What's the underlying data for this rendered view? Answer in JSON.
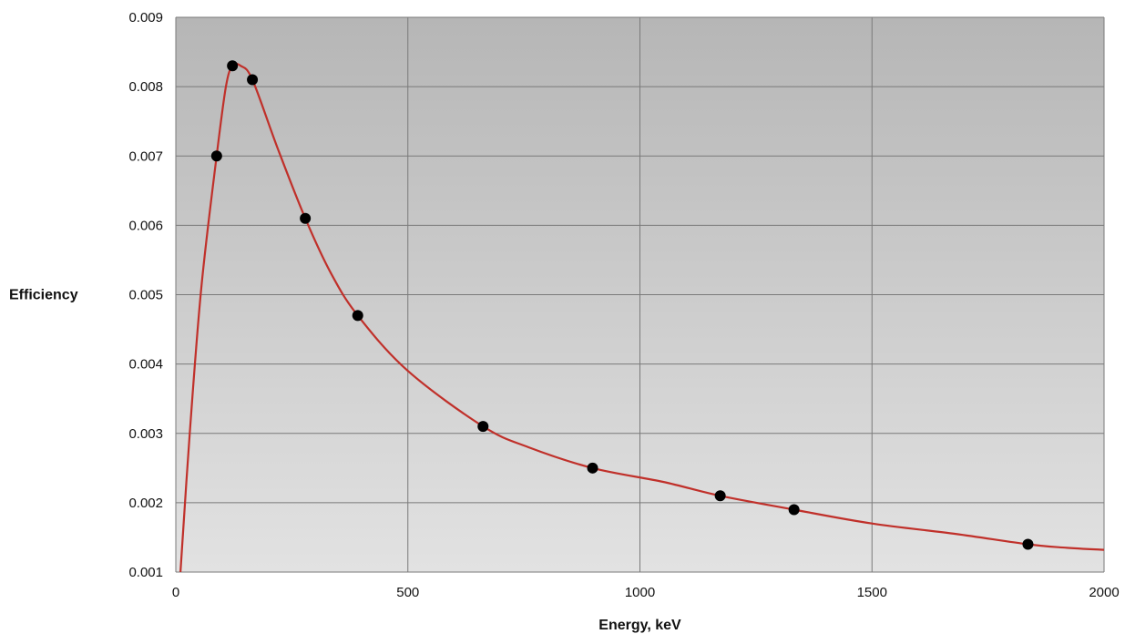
{
  "chart_data": {
    "type": "scatter",
    "title": "",
    "xlabel": "Energy, keV",
    "ylabel": "Efficiency",
    "xlim": [
      0,
      2000
    ],
    "ylim": [
      0.001,
      0.009
    ],
    "grid": true,
    "x_ticks": [
      0,
      500,
      1000,
      1500,
      2000
    ],
    "x_tick_labels": [
      "0",
      "500",
      "1000",
      "1500",
      "2000"
    ],
    "y_ticks": [
      0.001,
      0.002,
      0.003,
      0.004,
      0.005,
      0.006,
      0.007,
      0.008,
      0.009
    ],
    "y_tick_labels": [
      "0.001",
      "0.002",
      "0.003",
      "0.004",
      "0.005",
      "0.006",
      "0.007",
      "0.008",
      "0.009"
    ],
    "points": [
      {
        "x": 88,
        "y": 0.007
      },
      {
        "x": 122,
        "y": 0.0083
      },
      {
        "x": 165,
        "y": 0.0081
      },
      {
        "x": 279,
        "y": 0.0061
      },
      {
        "x": 392,
        "y": 0.0047
      },
      {
        "x": 662,
        "y": 0.0031
      },
      {
        "x": 898,
        "y": 0.0025
      },
      {
        "x": 1173,
        "y": 0.0021
      },
      {
        "x": 1332,
        "y": 0.0019
      },
      {
        "x": 1836,
        "y": 0.0014
      }
    ],
    "fit_curve": [
      {
        "x": 10,
        "y": 0.001
      },
      {
        "x": 30,
        "y": 0.003
      },
      {
        "x": 55,
        "y": 0.0051
      },
      {
        "x": 88,
        "y": 0.007
      },
      {
        "x": 108,
        "y": 0.008
      },
      {
        "x": 122,
        "y": 0.0083
      },
      {
        "x": 140,
        "y": 0.0083
      },
      {
        "x": 165,
        "y": 0.0081
      },
      {
        "x": 220,
        "y": 0.0071
      },
      {
        "x": 279,
        "y": 0.0061
      },
      {
        "x": 335,
        "y": 0.0053
      },
      {
        "x": 392,
        "y": 0.0047
      },
      {
        "x": 500,
        "y": 0.0039
      },
      {
        "x": 662,
        "y": 0.0031
      },
      {
        "x": 760,
        "y": 0.0028
      },
      {
        "x": 898,
        "y": 0.0025
      },
      {
        "x": 1050,
        "y": 0.0023
      },
      {
        "x": 1173,
        "y": 0.0021
      },
      {
        "x": 1332,
        "y": 0.0019
      },
      {
        "x": 1500,
        "y": 0.0017
      },
      {
        "x": 1680,
        "y": 0.00155
      },
      {
        "x": 1836,
        "y": 0.0014
      },
      {
        "x": 1920,
        "y": 0.00135
      },
      {
        "x": 2000,
        "y": 0.00132
      }
    ],
    "colors": {
      "curve": "#c0302a",
      "points": "#000000",
      "plot_bg_top": "#b6b6b6",
      "plot_bg_bottom": "#e2e2e2",
      "grid": "#7a7a7a"
    }
  }
}
